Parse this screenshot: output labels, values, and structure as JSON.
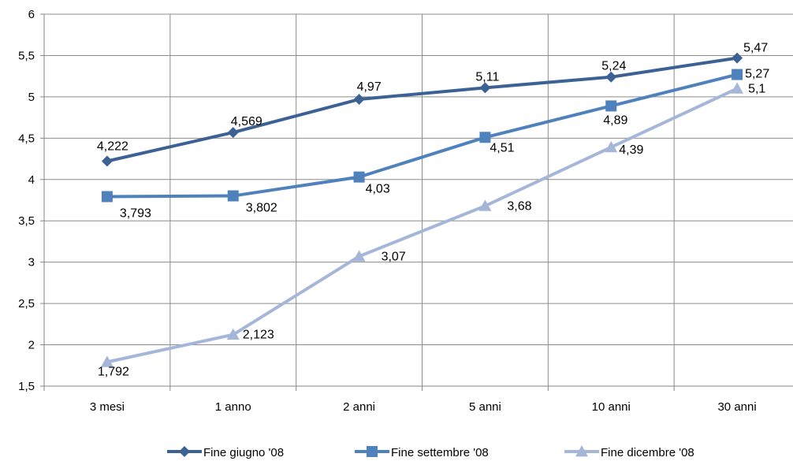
{
  "chart_data": {
    "type": "line",
    "title": "",
    "xlabel": "",
    "ylabel": "",
    "categories": [
      "3 mesi",
      "1 anno",
      "2 anni",
      "5 anni",
      "10 anni",
      "30 anni"
    ],
    "ylim": [
      1.5,
      6
    ],
    "yticks": [
      "1,5",
      "2",
      "2,5",
      "3",
      "3,5",
      "4",
      "4,5",
      "5",
      "5,5",
      "6"
    ],
    "grid": true,
    "legend_position": "bottom",
    "series": [
      {
        "name": "Fine giugno '08",
        "color": "#3C6194",
        "marker": "diamond",
        "values": [
          4.222,
          4.569,
          4.97,
          5.11,
          5.24,
          5.47
        ],
        "labels": [
          "4,222",
          "4,569",
          "4,97",
          "5,11",
          "5,24",
          "5,47"
        ]
      },
      {
        "name": "Fine settembre '08",
        "color": "#4F81BD",
        "marker": "square",
        "values": [
          3.793,
          3.802,
          4.03,
          4.51,
          4.89,
          5.27
        ],
        "labels": [
          "3,793",
          "3,802",
          "4,03",
          "4,51",
          "4,89",
          "5,27"
        ]
      },
      {
        "name": "Fine dicembre '08",
        "color": "#A5B6D9",
        "marker": "triangle",
        "values": [
          1.792,
          2.123,
          3.07,
          3.68,
          4.39,
          5.1
        ],
        "labels": [
          "1,792",
          "2,123",
          "3,07",
          "3,68",
          "4,39",
          "5,1"
        ]
      }
    ]
  }
}
